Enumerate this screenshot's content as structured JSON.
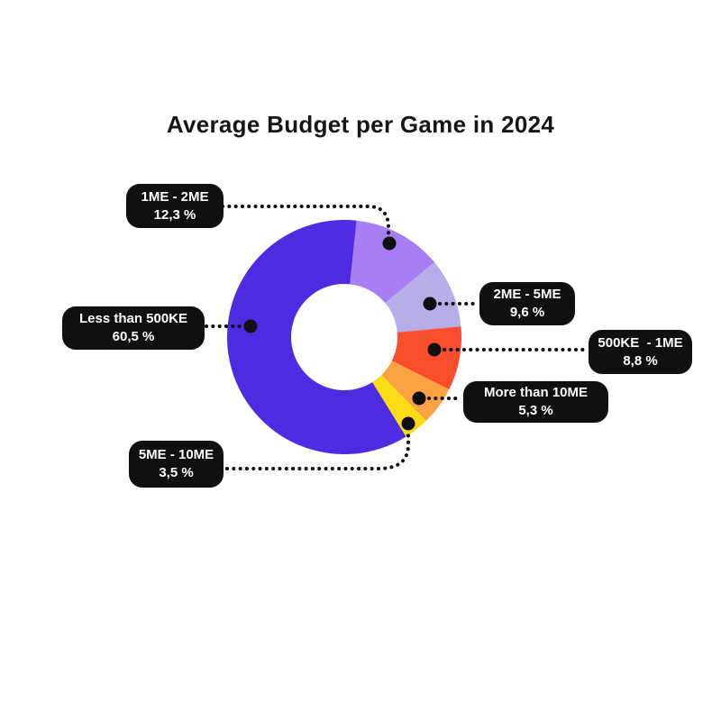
{
  "page": {
    "background": "#ffffff"
  },
  "chart_data": {
    "type": "pie",
    "variant": "donut",
    "title": "Average Budget per Game in 2024",
    "start_angle_deg": 6,
    "legend_position": "callout-labels",
    "total_pct": 100.0,
    "slices": [
      {
        "id": "1me-2me",
        "label": "1ME - 2ME",
        "value_pct": 12.3,
        "value_display": "12,3 %",
        "color": "#A77FF3"
      },
      {
        "id": "2me-5me",
        "label": "2ME - 5ME",
        "value_pct": 9.6,
        "value_display": "9,6 %",
        "color": "#B6ADE9"
      },
      {
        "id": "500ke-1me",
        "label": "500KE  - 1ME",
        "value_pct": 8.8,
        "value_display": "8,8 %",
        "color": "#F94E2C"
      },
      {
        "id": "more-than-10me",
        "label": "More than 10ME",
        "value_pct": 5.3,
        "value_display": "5,3 %",
        "color": "#FBA242"
      },
      {
        "id": "5me-10me",
        "label": "5ME - 10ME",
        "value_pct": 3.5,
        "value_display": "3,5 %",
        "color": "#F9DC13"
      },
      {
        "id": "less-than-500ke",
        "label": "Less than 500KE",
        "value_pct": 60.5,
        "value_display": "60,5 %",
        "color": "#4E2BE0"
      }
    ],
    "colors": {
      "title_text": "#161616",
      "callout_bg": "#101010",
      "callout_text": "#ffffff",
      "connector": "#101010"
    }
  }
}
